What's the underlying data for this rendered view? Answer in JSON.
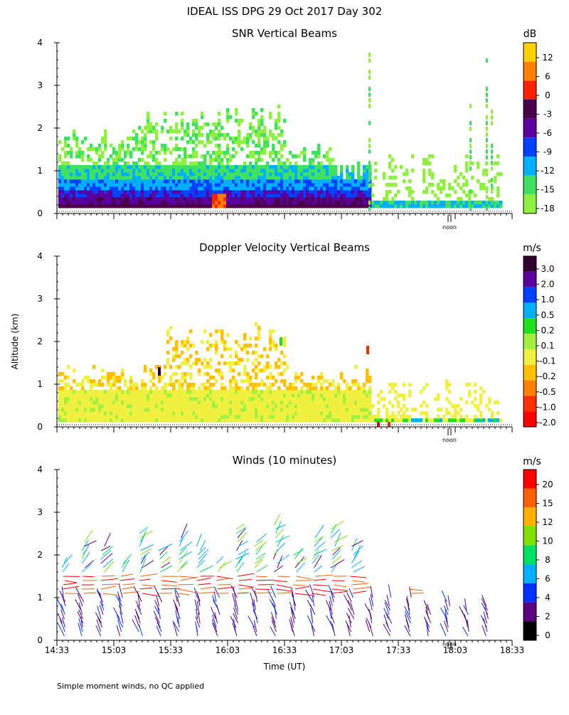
{
  "figure_title": "IDEAL ISS DPG  29 Oct 2017 Day 302",
  "ylabel": "Altitude (km)",
  "xlabel": "Time (UT)",
  "footer": "Simple moment winds, no QC applied",
  "noon_label": "noon",
  "chart_data": [
    {
      "type": "heatmap",
      "title": "SNR Vertical Beams",
      "units": "dB",
      "ylim": [
        0,
        4
      ],
      "y_ticks": [
        0,
        1,
        2,
        3,
        4
      ],
      "colorbar": {
        "labels": [
          "12",
          "6",
          "0",
          "-3",
          "-6",
          "-9",
          "-12",
          "-15",
          "-18"
        ],
        "colors": [
          "#ffd000",
          "#ff8000",
          "#ff2000",
          "#4a004a",
          "#5a00a0",
          "#0040ff",
          "#00b0ff",
          "#40e060",
          "#90f040"
        ]
      }
    },
    {
      "type": "heatmap",
      "title": "Doppler Velocity Vertical Beams",
      "units": "m/s",
      "ylim": [
        0,
        4
      ],
      "y_ticks": [
        0,
        1,
        2,
        3,
        4
      ],
      "colorbar": {
        "labels": [
          "3.0",
          "2.0",
          "1.0",
          "0.5",
          "0.2",
          "0.1",
          "-0.1",
          "-0.2",
          "-0.5",
          "-1.0",
          "-2.0"
        ],
        "colors": [
          "#300030",
          "#5a00a0",
          "#0040ff",
          "#00b0ff",
          "#20e020",
          "#a0f040",
          "#f0f040",
          "#ffc000",
          "#ff8000",
          "#ff3000",
          "#ff0000"
        ]
      }
    },
    {
      "type": "scatter",
      "title": "Winds (10 minutes)",
      "units": "m/s",
      "ylim": [
        0,
        4
      ],
      "y_ticks": [
        0,
        1,
        2,
        3,
        4
      ],
      "x_ticks": [
        "14:33",
        "15:03",
        "15:33",
        "16:03",
        "16:33",
        "17:03",
        "17:33",
        "18:03",
        "18:33"
      ],
      "colorbar": {
        "labels": [
          "20",
          "15",
          "12",
          "10",
          "8",
          "6",
          "4",
          "2",
          "0"
        ],
        "colors": [
          "#ff0000",
          "#ff6000",
          "#ffb000",
          "#80e000",
          "#00e060",
          "#00b0ff",
          "#0030ff",
          "#5a0080",
          "#000000"
        ]
      }
    }
  ]
}
